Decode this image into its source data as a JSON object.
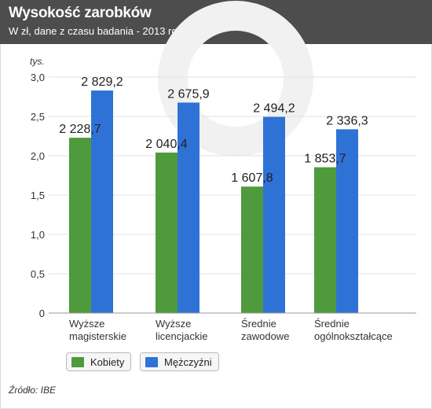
{
  "header": {
    "title": "Wysokość zarobków",
    "subtitle": "W zł, dane z czasu badania - 2013 rok"
  },
  "source": "Źródło: IBE",
  "colors": {
    "kobiety": "#4f9a3c",
    "mezczyzni": "#2f72d6",
    "header_bg": "#4d4d4d",
    "grid": "#e2e2e2",
    "axis": "#9a9a9a"
  },
  "legend": {
    "kobiety": "Kobiety",
    "mezczyzni": "Mężczyźni"
  },
  "chart_data": {
    "type": "bar",
    "title": "Wysokość zarobków",
    "subtitle": "W zł, dane z czasu badania - 2013 rok",
    "ylabel": "tys.",
    "ylim": [
      0,
      3.0
    ],
    "yticks": [
      "0",
      "0,5",
      "1,0",
      "1,5",
      "2,0",
      "2,5",
      "3,0"
    ],
    "ytick_values": [
      0,
      0.5,
      1.0,
      1.5,
      2.0,
      2.5,
      3.0
    ],
    "grid": true,
    "legend_position": "bottom-left",
    "categories": [
      [
        "Wyższe",
        "magisterskie"
      ],
      [
        "Wyższe",
        "licencjackie"
      ],
      [
        "Średnie",
        "zawodowe"
      ],
      [
        "Średnie",
        "ogólnokształcące"
      ]
    ],
    "series": [
      {
        "name": "Kobiety",
        "values": [
          2.2287,
          2.0404,
          1.6078,
          1.8537
        ],
        "labels": [
          "2 228,7",
          "2 040,4",
          "1 607,8",
          "1 853,7"
        ]
      },
      {
        "name": "Mężczyźni",
        "values": [
          2.8292,
          2.6759,
          2.4942,
          2.3363
        ],
        "labels": [
          "2 829,2",
          "2 675,9",
          "2 494,2",
          "2 336,3"
        ]
      }
    ]
  }
}
